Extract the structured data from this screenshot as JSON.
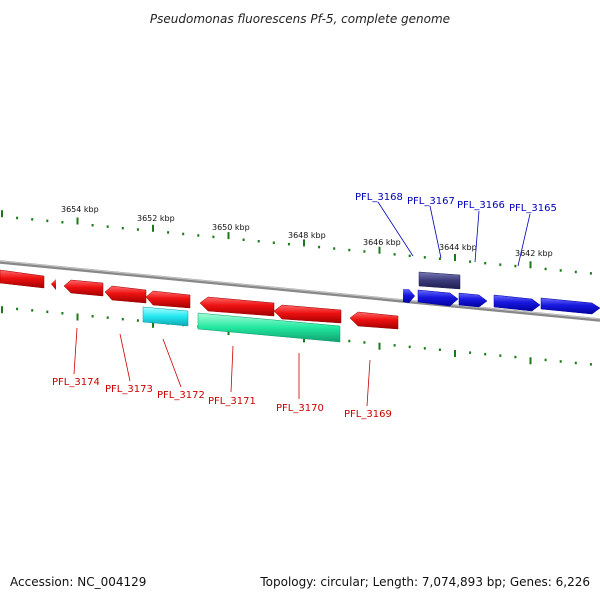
{
  "title": "Pseudomonas fluorescens Pf-5, complete genome",
  "footer": {
    "accession": "Accession: NC_004129",
    "summary": "Topology: circular; Length: 7,074,893 bp; Genes: 6,226"
  },
  "colors": {
    "tick": "#1a7a1a",
    "backbone": "#888888",
    "label_forward": "#0000bb",
    "label_reverse": "#cc0000"
  },
  "kbp_labels": [
    "3654 kbp",
    "3652 kbp",
    "3650 kbp",
    "3648 kbp",
    "3646 kbp",
    "3644 kbp",
    "3642 kbp"
  ],
  "genes_forward": [
    {
      "name": "PFL_3168",
      "color": "#2020dd"
    },
    {
      "name": "PFL_3167",
      "color": "#3a3a7a"
    },
    {
      "name": "PFL_3166",
      "color": "#2020dd"
    },
    {
      "name": "PFL_3165",
      "color": "#2020dd"
    }
  ],
  "genes_reverse": [
    {
      "name": "PFL_3174",
      "color": "#ee1111"
    },
    {
      "name": "PFL_3173",
      "color": "#ee1111"
    },
    {
      "name": "PFL_3172",
      "color": "#ee1111"
    },
    {
      "name": "PFL_3171",
      "color": "#ee1111"
    },
    {
      "name": "PFL_3170",
      "color": "#ee1111"
    },
    {
      "name": "PFL_3169",
      "color": "#ee1111"
    }
  ],
  "features": [
    {
      "name": "cyan-feature",
      "color": "#22e6f0"
    },
    {
      "name": "green-feature",
      "color": "#22e8a0"
    }
  ]
}
